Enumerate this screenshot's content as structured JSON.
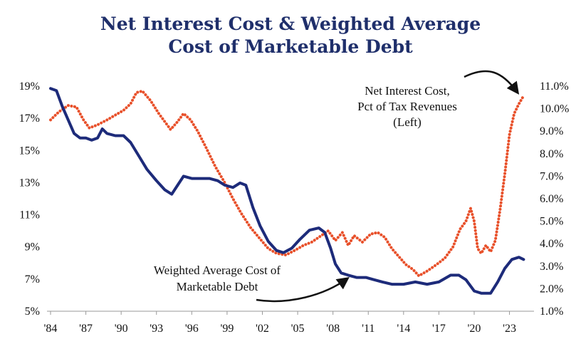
{
  "chart_data": {
    "type": "line",
    "title": [
      "Net Interest Cost & Weighted Average",
      "Cost of Marketable Debt"
    ],
    "x_ticks": [
      "'84",
      "'87",
      "'90",
      "'93",
      "'96",
      "'99",
      "'02",
      "'05",
      "'08",
      "'11",
      "'14",
      "'17",
      "'20",
      "'23"
    ],
    "x_range": [
      1984,
      2024.6
    ],
    "left_axis": {
      "ticks": [
        "5%",
        "7%",
        "9%",
        "11%",
        "13%",
        "15%",
        "17%",
        "19%"
      ],
      "range": [
        5,
        19
      ]
    },
    "right_axis": {
      "ticks": [
        "1.0%",
        "2.0%",
        "3.0%",
        "4.0%",
        "5.0%",
        "6.0%",
        "7.0%",
        "8.0%",
        "9.0%",
        "10.0%",
        "11.0%"
      ],
      "range": [
        1.0,
        11.0
      ]
    },
    "series": [
      {
        "name": "Net Interest Cost, Pct of Tax Revenues (Left)",
        "axis": "left",
        "color": "#e8502a",
        "style": "dotted",
        "points": [
          [
            1984,
            16.9
          ],
          [
            1984.7,
            17.4
          ],
          [
            1985.5,
            17.8
          ],
          [
            1986.2,
            17.7
          ],
          [
            1986.8,
            16.9
          ],
          [
            1987.3,
            16.4
          ],
          [
            1988,
            16.6
          ],
          [
            1988.8,
            16.9
          ],
          [
            1989.5,
            17.2
          ],
          [
            1990.2,
            17.5
          ],
          [
            1990.8,
            17.9
          ],
          [
            1991.3,
            18.6
          ],
          [
            1991.8,
            18.7
          ],
          [
            1992.5,
            18.1
          ],
          [
            1993.2,
            17.3
          ],
          [
            1993.8,
            16.7
          ],
          [
            1994.2,
            16.3
          ],
          [
            1994.8,
            16.8
          ],
          [
            1995.3,
            17.3
          ],
          [
            1995.9,
            16.9
          ],
          [
            1996.5,
            16.2
          ],
          [
            1997.2,
            15.2
          ],
          [
            1998,
            14.0
          ],
          [
            1998.8,
            13.0
          ],
          [
            1999.5,
            12.0
          ],
          [
            2000.2,
            11.1
          ],
          [
            2001,
            10.2
          ],
          [
            2001.8,
            9.5
          ],
          [
            2002.5,
            8.9
          ],
          [
            2003.2,
            8.6
          ],
          [
            2004,
            8.5
          ],
          [
            2004.8,
            8.8
          ],
          [
            2005.5,
            9.1
          ],
          [
            2006.2,
            9.3
          ],
          [
            2007,
            9.7
          ],
          [
            2007.6,
            10.0
          ],
          [
            2008.2,
            9.4
          ],
          [
            2008.8,
            9.9
          ],
          [
            2009.3,
            9.1
          ],
          [
            2009.8,
            9.7
          ],
          [
            2010.5,
            9.3
          ],
          [
            2011.2,
            9.8
          ],
          [
            2011.8,
            9.9
          ],
          [
            2012.4,
            9.6
          ],
          [
            2013,
            8.9
          ],
          [
            2013.6,
            8.4
          ],
          [
            2014.2,
            7.9
          ],
          [
            2014.8,
            7.6
          ],
          [
            2015.3,
            7.2
          ],
          [
            2016,
            7.5
          ],
          [
            2016.8,
            7.9
          ],
          [
            2017.5,
            8.3
          ],
          [
            2018.2,
            9.0
          ],
          [
            2018.8,
            10.1
          ],
          [
            2019.3,
            10.6
          ],
          [
            2019.7,
            11.4
          ],
          [
            2020,
            10.6
          ],
          [
            2020.3,
            8.9
          ],
          [
            2020.6,
            8.6
          ],
          [
            2021,
            9.1
          ],
          [
            2021.4,
            8.7
          ],
          [
            2021.8,
            9.4
          ],
          [
            2022.2,
            11.3
          ],
          [
            2022.6,
            13.5
          ],
          [
            2023,
            16.0
          ],
          [
            2023.4,
            17.3
          ],
          [
            2023.8,
            17.9
          ],
          [
            2024.2,
            18.4
          ]
        ]
      },
      {
        "name": "Weighted Average Cost of Marketable Debt",
        "axis": "right",
        "color": "#1d2b7a",
        "style": "solid",
        "points": [
          [
            1984,
            10.9
          ],
          [
            1984.5,
            10.8
          ],
          [
            1985,
            10.1
          ],
          [
            1985.5,
            9.5
          ],
          [
            1986,
            8.9
          ],
          [
            1986.5,
            8.7
          ],
          [
            1987,
            8.7
          ],
          [
            1987.5,
            8.6
          ],
          [
            1988,
            8.7
          ],
          [
            1988.4,
            9.1
          ],
          [
            1988.8,
            8.9
          ],
          [
            1989.5,
            8.8
          ],
          [
            1990.2,
            8.8
          ],
          [
            1990.8,
            8.5
          ],
          [
            1991.5,
            7.9
          ],
          [
            1992.2,
            7.3
          ],
          [
            1993,
            6.8
          ],
          [
            1993.7,
            6.4
          ],
          [
            1994.3,
            6.2
          ],
          [
            1994.8,
            6.6
          ],
          [
            1995.3,
            7.0
          ],
          [
            1996,
            6.9
          ],
          [
            1996.8,
            6.9
          ],
          [
            1997.5,
            6.9
          ],
          [
            1998.2,
            6.8
          ],
          [
            1998.8,
            6.6
          ],
          [
            1999.5,
            6.5
          ],
          [
            2000.1,
            6.7
          ],
          [
            2000.6,
            6.6
          ],
          [
            2001.2,
            5.6
          ],
          [
            2001.8,
            4.8
          ],
          [
            2002.5,
            4.1
          ],
          [
            2003.2,
            3.7
          ],
          [
            2003.8,
            3.6
          ],
          [
            2004.5,
            3.8
          ],
          [
            2005.2,
            4.2
          ],
          [
            2006,
            4.6
          ],
          [
            2006.8,
            4.7
          ],
          [
            2007.3,
            4.5
          ],
          [
            2007.8,
            3.8
          ],
          [
            2008.2,
            3.1
          ],
          [
            2008.7,
            2.7
          ],
          [
            2009.3,
            2.6
          ],
          [
            2010,
            2.5
          ],
          [
            2010.8,
            2.5
          ],
          [
            2011.5,
            2.4
          ],
          [
            2012.2,
            2.3
          ],
          [
            2013,
            2.2
          ],
          [
            2014,
            2.2
          ],
          [
            2015,
            2.3
          ],
          [
            2016,
            2.2
          ],
          [
            2017,
            2.3
          ],
          [
            2018,
            2.6
          ],
          [
            2018.7,
            2.6
          ],
          [
            2019.3,
            2.4
          ],
          [
            2020,
            1.9
          ],
          [
            2020.6,
            1.8
          ],
          [
            2021.4,
            1.8
          ],
          [
            2022,
            2.3
          ],
          [
            2022.6,
            2.9
          ],
          [
            2023.2,
            3.3
          ],
          [
            2023.8,
            3.4
          ],
          [
            2024.2,
            3.3
          ]
        ]
      }
    ],
    "annotations": [
      {
        "name": "net-interest-label",
        "lines": [
          "Net Interest Cost,",
          "Pct of Tax Revenues",
          "(Left)"
        ]
      },
      {
        "name": "wac-label",
        "lines": [
          "Weighted Average Cost of",
          "Marketable Debt"
        ]
      }
    ]
  }
}
